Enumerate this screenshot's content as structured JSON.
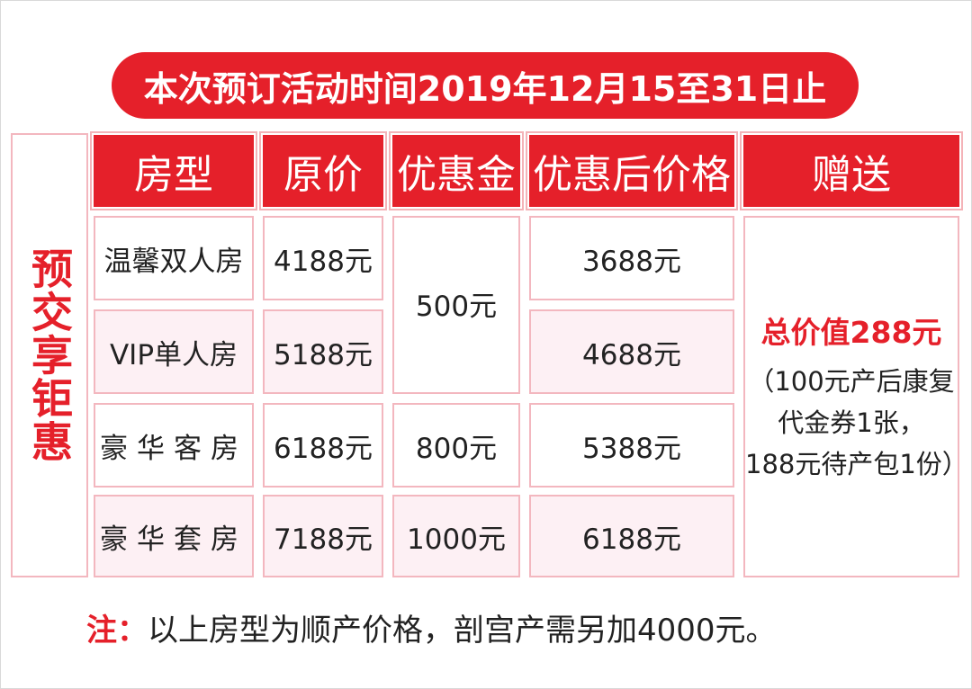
{
  "banner": {
    "title": "本次预订活动时间2019年12月15至31日止"
  },
  "side_label": "预交享钜惠",
  "table": {
    "headers": [
      "房型",
      "原价",
      "优惠金",
      "优惠后价格",
      "赠送"
    ],
    "rows": [
      {
        "room": "温馨双人房",
        "price": "4188元",
        "discount": "500元",
        "final": "3688元"
      },
      {
        "room": "VIP单人房",
        "price": "5188元",
        "discount": "500元",
        "final": "4688元"
      },
      {
        "room": "豪华客房",
        "price": "6188元",
        "discount": "800元",
        "final": "5388元"
      },
      {
        "room": "豪华套房",
        "price": "7188元",
        "discount": "1000元",
        "final": "6188元"
      }
    ],
    "gift": {
      "title": "总价值288元",
      "lines": [
        "（100元产后康复",
        "代金券1张，",
        "188元待产包1份）"
      ]
    }
  },
  "note": {
    "prefix": "注：",
    "text": "以上房型为顺产价格，剖宫产需另加4000元。"
  },
  "colors": {
    "accent": "#e5202a",
    "border": "#f3b7bf",
    "row_tint": "#fdf0f4"
  }
}
